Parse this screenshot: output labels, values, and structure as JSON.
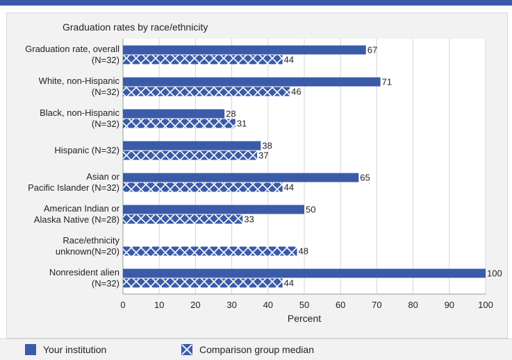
{
  "chart_data": {
    "type": "bar",
    "orientation": "horizontal",
    "title": "Graduation rates by race/ethnicity",
    "xlabel": "Percent",
    "xlim": [
      0,
      100
    ],
    "ticks": [
      0,
      10,
      20,
      30,
      40,
      50,
      60,
      70,
      80,
      90,
      100
    ],
    "grid": true,
    "categories": [
      [
        "Graduation rate, overall",
        "(N=32)"
      ],
      [
        "White, non-Hispanic",
        "(N=32)"
      ],
      [
        "Black, non-Hispanic",
        "(N=32)"
      ],
      [
        "Hispanic (N=32)"
      ],
      [
        "Asian or",
        "Pacific Islander (N=32)"
      ],
      [
        "American Indian or",
        "Alaska Native (N=28)"
      ],
      [
        "Race/ethnicity",
        "unknown(N=20)"
      ],
      [
        "Nonresident alien",
        "(N=32)"
      ]
    ],
    "series": [
      {
        "name": "Your institution",
        "pattern": "solid",
        "color": "#3a5ba9",
        "values": [
          67,
          71,
          28,
          38,
          65,
          50,
          null,
          100
        ]
      },
      {
        "name": "Comparison group median",
        "pattern": "crosshatch",
        "color": "#3a5ba9",
        "values": [
          44,
          46,
          31,
          37,
          44,
          33,
          48,
          44
        ]
      }
    ],
    "legend_position": "bottom"
  },
  "legend": {
    "items": [
      "Your institution",
      "Comparison group median"
    ]
  }
}
